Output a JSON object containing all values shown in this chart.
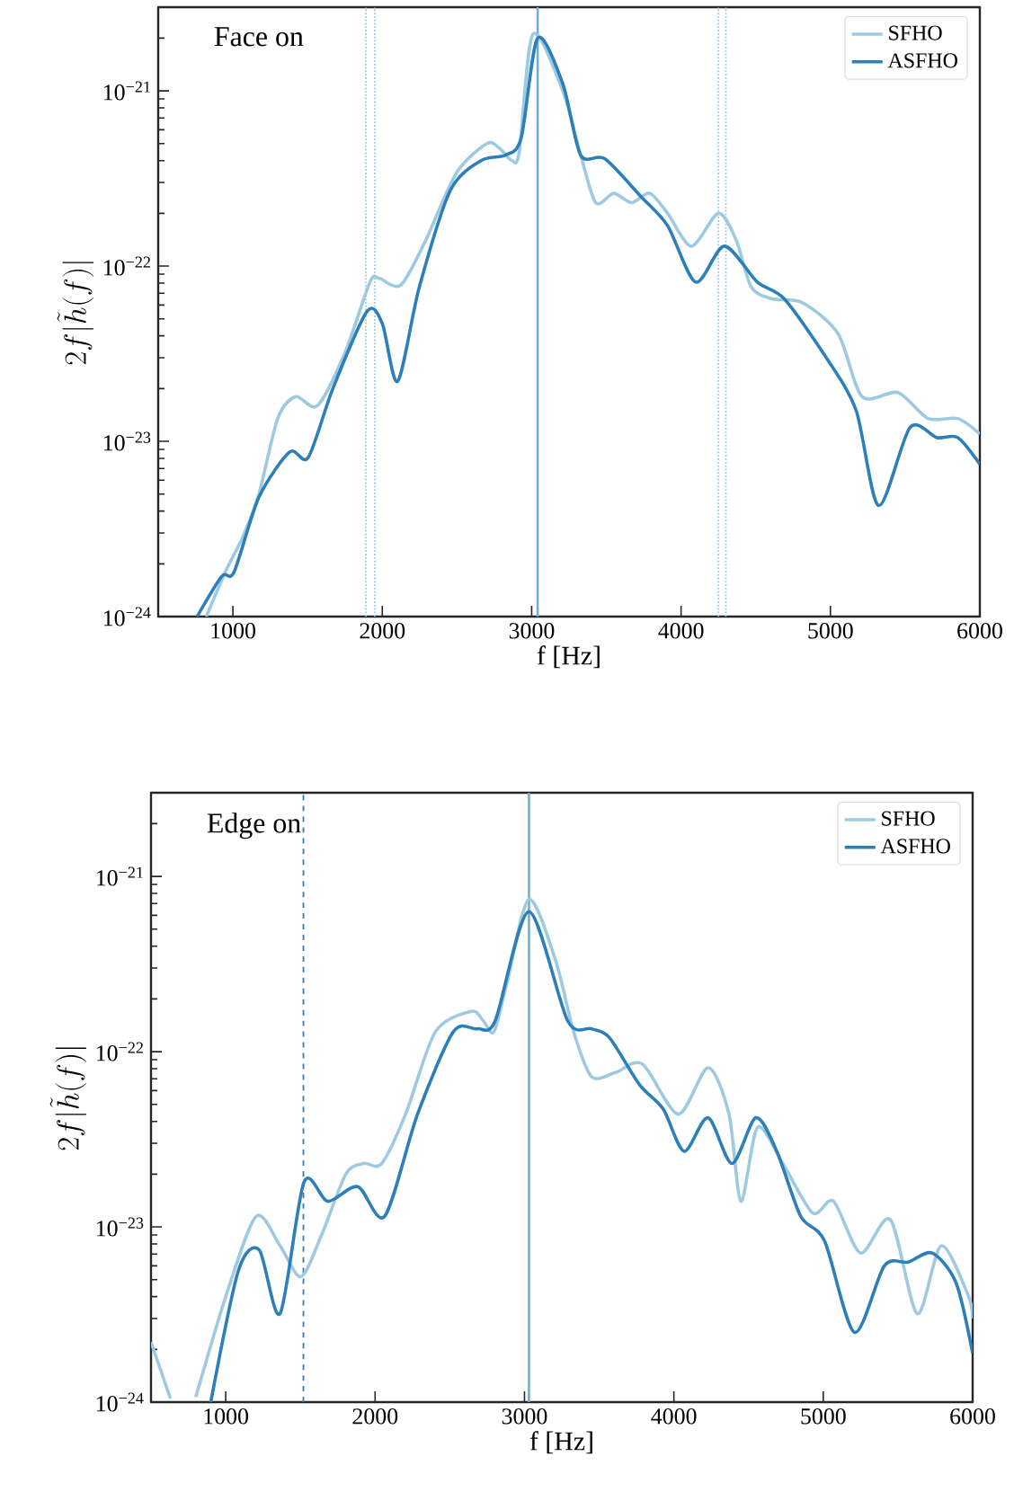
{
  "chart_data": [
    {
      "type": "line",
      "title": "Face on",
      "xlabel": "f [Hz]",
      "ylabel": "2f|\\tilde{h}(f)|",
      "log": "y",
      "legend": "top right",
      "grid": false,
      "xlim": [
        500,
        6000
      ],
      "ylim": [
        1e-24,
        3e-21
      ],
      "xticks": [
        1000,
        2000,
        3000,
        4000,
        5000,
        6000
      ],
      "yticks": [
        {
          "value": 1e-24,
          "label": "10$^{−24}$"
        },
        {
          "value": 1e-23,
          "label": "10$^{−23}$"
        },
        {
          "value": 1e-22,
          "label": "10$^{−22}$"
        },
        {
          "value": 1e-21,
          "label": "10$^{−21}$"
        }
      ],
      "ref_lines": [
        {
          "axis": "x",
          "value": 3040,
          "color": "#6baed6",
          "line_style": "solid"
        },
        {
          "axis": "x",
          "value": 1890,
          "color": "#9ecae1",
          "line_style": "dotted"
        },
        {
          "axis": "x",
          "value": 1950,
          "color": "#9ecae1",
          "line_style": "dotted"
        },
        {
          "axis": "x",
          "value": 4250,
          "color": "#9ecae1",
          "line_style": "dotted"
        },
        {
          "axis": "x",
          "value": 4300,
          "color": "#9ecae1",
          "line_style": "dotted"
        }
      ],
      "series": [
        {
          "name": "SFHO",
          "color": "#9ecae1",
          "x": [
            822,
            950,
            1070,
            1174,
            1300,
            1420,
            1566,
            1750,
            1917,
            1980,
            2124,
            2290,
            2496,
            2700,
            2785,
            2868,
            2917,
            3008,
            3208,
            3328,
            3429,
            3549,
            3669,
            3790,
            3910,
            4070,
            4250,
            4370,
            4470,
            4611,
            4811,
            5052,
            5212,
            5452,
            5653,
            5853,
            6000
          ],
          "values": [
            1e-24,
            1.8e-24,
            2.9e-24,
            5e-24,
            1.35e-23,
            1.8e-23,
            1.6e-23,
            3.2e-23,
            8.1e-23,
            8.5e-23,
            7.8e-23,
            1.4e-22,
            3.4e-22,
            5e-22,
            4.7e-22,
            4e-22,
            4.5e-22,
            2.1e-21,
            1e-21,
            4.3e-22,
            2.3e-22,
            2.6e-22,
            2.3e-22,
            2.6e-22,
            2e-22,
            1.3e-22,
            2e-22,
            1.4e-22,
            7.6e-23,
            6.5e-23,
            6.2e-23,
            4.1e-23,
            1.8e-23,
            1.9e-23,
            1.35e-23,
            1.35e-23,
            1.1e-23
          ]
        },
        {
          "name": "ASFHO",
          "color": "#2c7fb8",
          "x": [
            760,
            926,
            1008,
            1174,
            1380,
            1504,
            1669,
            1897,
            2000,
            2103,
            2248,
            2455,
            2661,
            2826,
            2930,
            3040,
            3208,
            3328,
            3489,
            3730,
            3910,
            4098,
            4290,
            4511,
            4691,
            4972,
            5172,
            5323,
            5533,
            5713,
            5853,
            6000
          ],
          "values": [
            1e-24,
            1.7e-24,
            1.8e-24,
            4.8e-24,
            8.7e-24,
            8.1e-24,
            2e-23,
            5.5e-23,
            4.7e-23,
            2.2e-23,
            7.6e-23,
            2.7e-22,
            4e-22,
            4.3e-22,
            5.4e-22,
            2e-21,
            1.1e-21,
            4.3e-22,
            4.1e-22,
            2.5e-22,
            1.7e-22,
            8.1e-23,
            1.3e-22,
            8.1e-23,
            6.5e-23,
            3e-23,
            1.5e-23,
            4.3e-24,
            1.2e-23,
            1.05e-23,
            1.05e-23,
            7.4e-24
          ]
        }
      ]
    },
    {
      "type": "line",
      "title": "Edge on",
      "xlabel": "f [Hz]",
      "ylabel": "2f|\\tilde{h}(f)|",
      "log": "y",
      "legend": "top right",
      "grid": false,
      "xlim": [
        500,
        6000
      ],
      "ylim": [
        1e-24,
        3e-21
      ],
      "xticks": [
        1000,
        2000,
        3000,
        4000,
        5000,
        6000
      ],
      "yticks": [
        {
          "value": 1e-24,
          "label": "10$^{−24}$"
        },
        {
          "value": 1e-23,
          "label": "10$^{−23}$"
        },
        {
          "value": 1e-22,
          "label": "10$^{−22}$"
        },
        {
          "value": 1e-21,
          "label": "10$^{−21}$"
        }
      ],
      "ref_lines": [
        {
          "axis": "x",
          "value": 3030,
          "color": "#6baed6",
          "line_style": "solid"
        },
        {
          "axis": "x",
          "value": 1520,
          "color": "#2c7fb8",
          "line_style": "dashed"
        }
      ],
      "series": [
        {
          "name": "SFHO",
          "color": "#9ecae1",
          "x": [
            500,
            630,
            700,
            800,
            1004,
            1204,
            1364,
            1504,
            1644,
            1804,
            1924,
            2044,
            2204,
            2404,
            2644,
            2724,
            2796,
            2884,
            3030,
            3209,
            3329,
            3449,
            3609,
            3789,
            4029,
            4229,
            4369,
            4449,
            4561,
            4729,
            4929,
            5069,
            5249,
            5449,
            5629,
            5789,
            5969,
            6000
          ],
          "values": [
            2.2e-24,
            1.05e-24,
            null,
            1.07e-24,
            4.1e-24,
            1.15e-23,
            7.8e-24,
            5.2e-24,
            9.1e-24,
            2e-23,
            2.3e-23,
            2.3e-23,
            4.4e-23,
            1.3e-22,
            1.7e-22,
            1.5e-22,
            1.3e-22,
            2.5e-22,
            7.4e-22,
            3.3e-22,
            1.3e-22,
            7.2e-23,
            7.6e-23,
            8.5e-23,
            4.4e-23,
            8.1e-23,
            4.4e-23,
            1.4e-23,
            3.7e-23,
            2.3e-23,
            1.2e-23,
            1.4e-23,
            7.1e-24,
            1.1e-23,
            3.2e-24,
            7.8e-24,
            4.1e-24,
            3e-24
          ]
        },
        {
          "name": "ASFHO",
          "color": "#2c7fb8",
          "x": [
            900,
            1084,
            1224,
            1364,
            1524,
            1684,
            1884,
            2064,
            2284,
            2524,
            2684,
            2804,
            3030,
            3289,
            3449,
            3569,
            3769,
            3929,
            4069,
            4229,
            4389,
            4549,
            4689,
            4849,
            5009,
            5209,
            5409,
            5569,
            5729,
            5889,
            6000
          ],
          "values": [
            1e-24,
            5.6e-24,
            7.4e-24,
            3.2e-24,
            1.8e-23,
            1.4e-23,
            1.7e-23,
            1.15e-23,
            4.4e-23,
            1.3e-22,
            1.35e-22,
            1.5e-22,
            6.3e-22,
            1.5e-22,
            1.35e-22,
            1.2e-22,
            6.5e-23,
            4.7e-23,
            2.7e-23,
            4.2e-23,
            2.3e-23,
            4.2e-23,
            2.7e-23,
            1.15e-23,
            8.3e-24,
            2.5e-24,
            6e-24,
            6.3e-24,
            7.1e-24,
            4.8e-24,
            1.9e-24
          ]
        }
      ]
    }
  ]
}
